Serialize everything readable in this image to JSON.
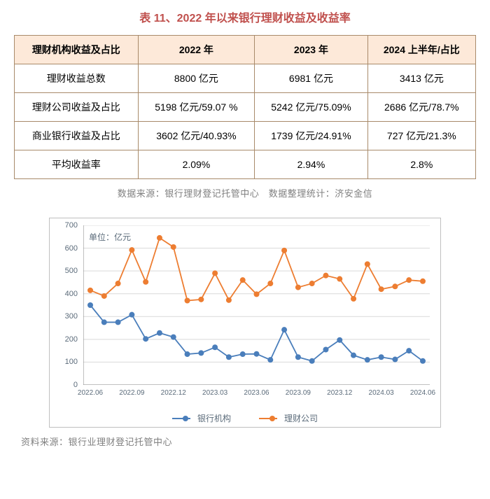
{
  "title": {
    "text": "表 11、2022 年以来银行理财收益及收益率",
    "color": "#c0504d"
  },
  "table": {
    "headers": [
      "理财机构收益及占比",
      "2022 年",
      "2023 年",
      "2024 上半年/占比"
    ],
    "rows": [
      [
        "理财收益总数",
        "8800 亿元",
        "6981 亿元",
        "3413 亿元"
      ],
      [
        "理财公司收益及占比",
        "5198 亿元/59.07 %",
        "5242 亿元/75.09%",
        "2686 亿元/78.7%"
      ],
      [
        "商业银行收益及占比",
        "3602 亿元/40.93%",
        "1739 亿元/24.91%",
        "727 亿元/21.3%"
      ],
      [
        "平均收益率",
        "2.09%",
        "2.94%",
        "2.8%"
      ]
    ],
    "header_bg": "#fde9d9",
    "border_color": "#a88a6a"
  },
  "source1": "数据来源：银行理财登记托管中心　数据整理统计：济安金信",
  "source2": "资料来源：银行业理财登记托管中心",
  "chart": {
    "type": "line",
    "unit_label": "单位：亿元",
    "ylim": [
      0,
      700
    ],
    "ytick_step": 100,
    "yticks": [
      0,
      100,
      200,
      300,
      400,
      500,
      600,
      700
    ],
    "x_labels_visible": [
      "2022.06",
      "2022.09",
      "2022.12",
      "2023.03",
      "2023.06",
      "2023.09",
      "2023.12",
      "2024.03",
      "2024.06"
    ],
    "x_tick_interval": 3,
    "n_points": 25,
    "background_color": "#ffffff",
    "grid_color": "#d9d9d9",
    "axis_label_color": "#5b6b7a",
    "axis_label_fontsize": 11,
    "marker_style": "circle",
    "marker_size": 4,
    "line_width": 1.8,
    "series": [
      {
        "name": "银行机构",
        "color": "#4a7ebb",
        "values": [
          350,
          275,
          275,
          308,
          202,
          228,
          210,
          135,
          140,
          165,
          122,
          135,
          136,
          110,
          242,
          122,
          105,
          155,
          197,
          130,
          110,
          122,
          112,
          150,
          105
        ]
      },
      {
        "name": "理财公司",
        "color": "#ed7d31",
        "values": [
          415,
          390,
          445,
          592,
          452,
          645,
          605,
          370,
          375,
          490,
          372,
          460,
          398,
          445,
          590,
          428,
          445,
          480,
          465,
          378,
          530,
          420,
          432,
          460,
          455
        ]
      }
    ],
    "legend_position": "bottom"
  }
}
